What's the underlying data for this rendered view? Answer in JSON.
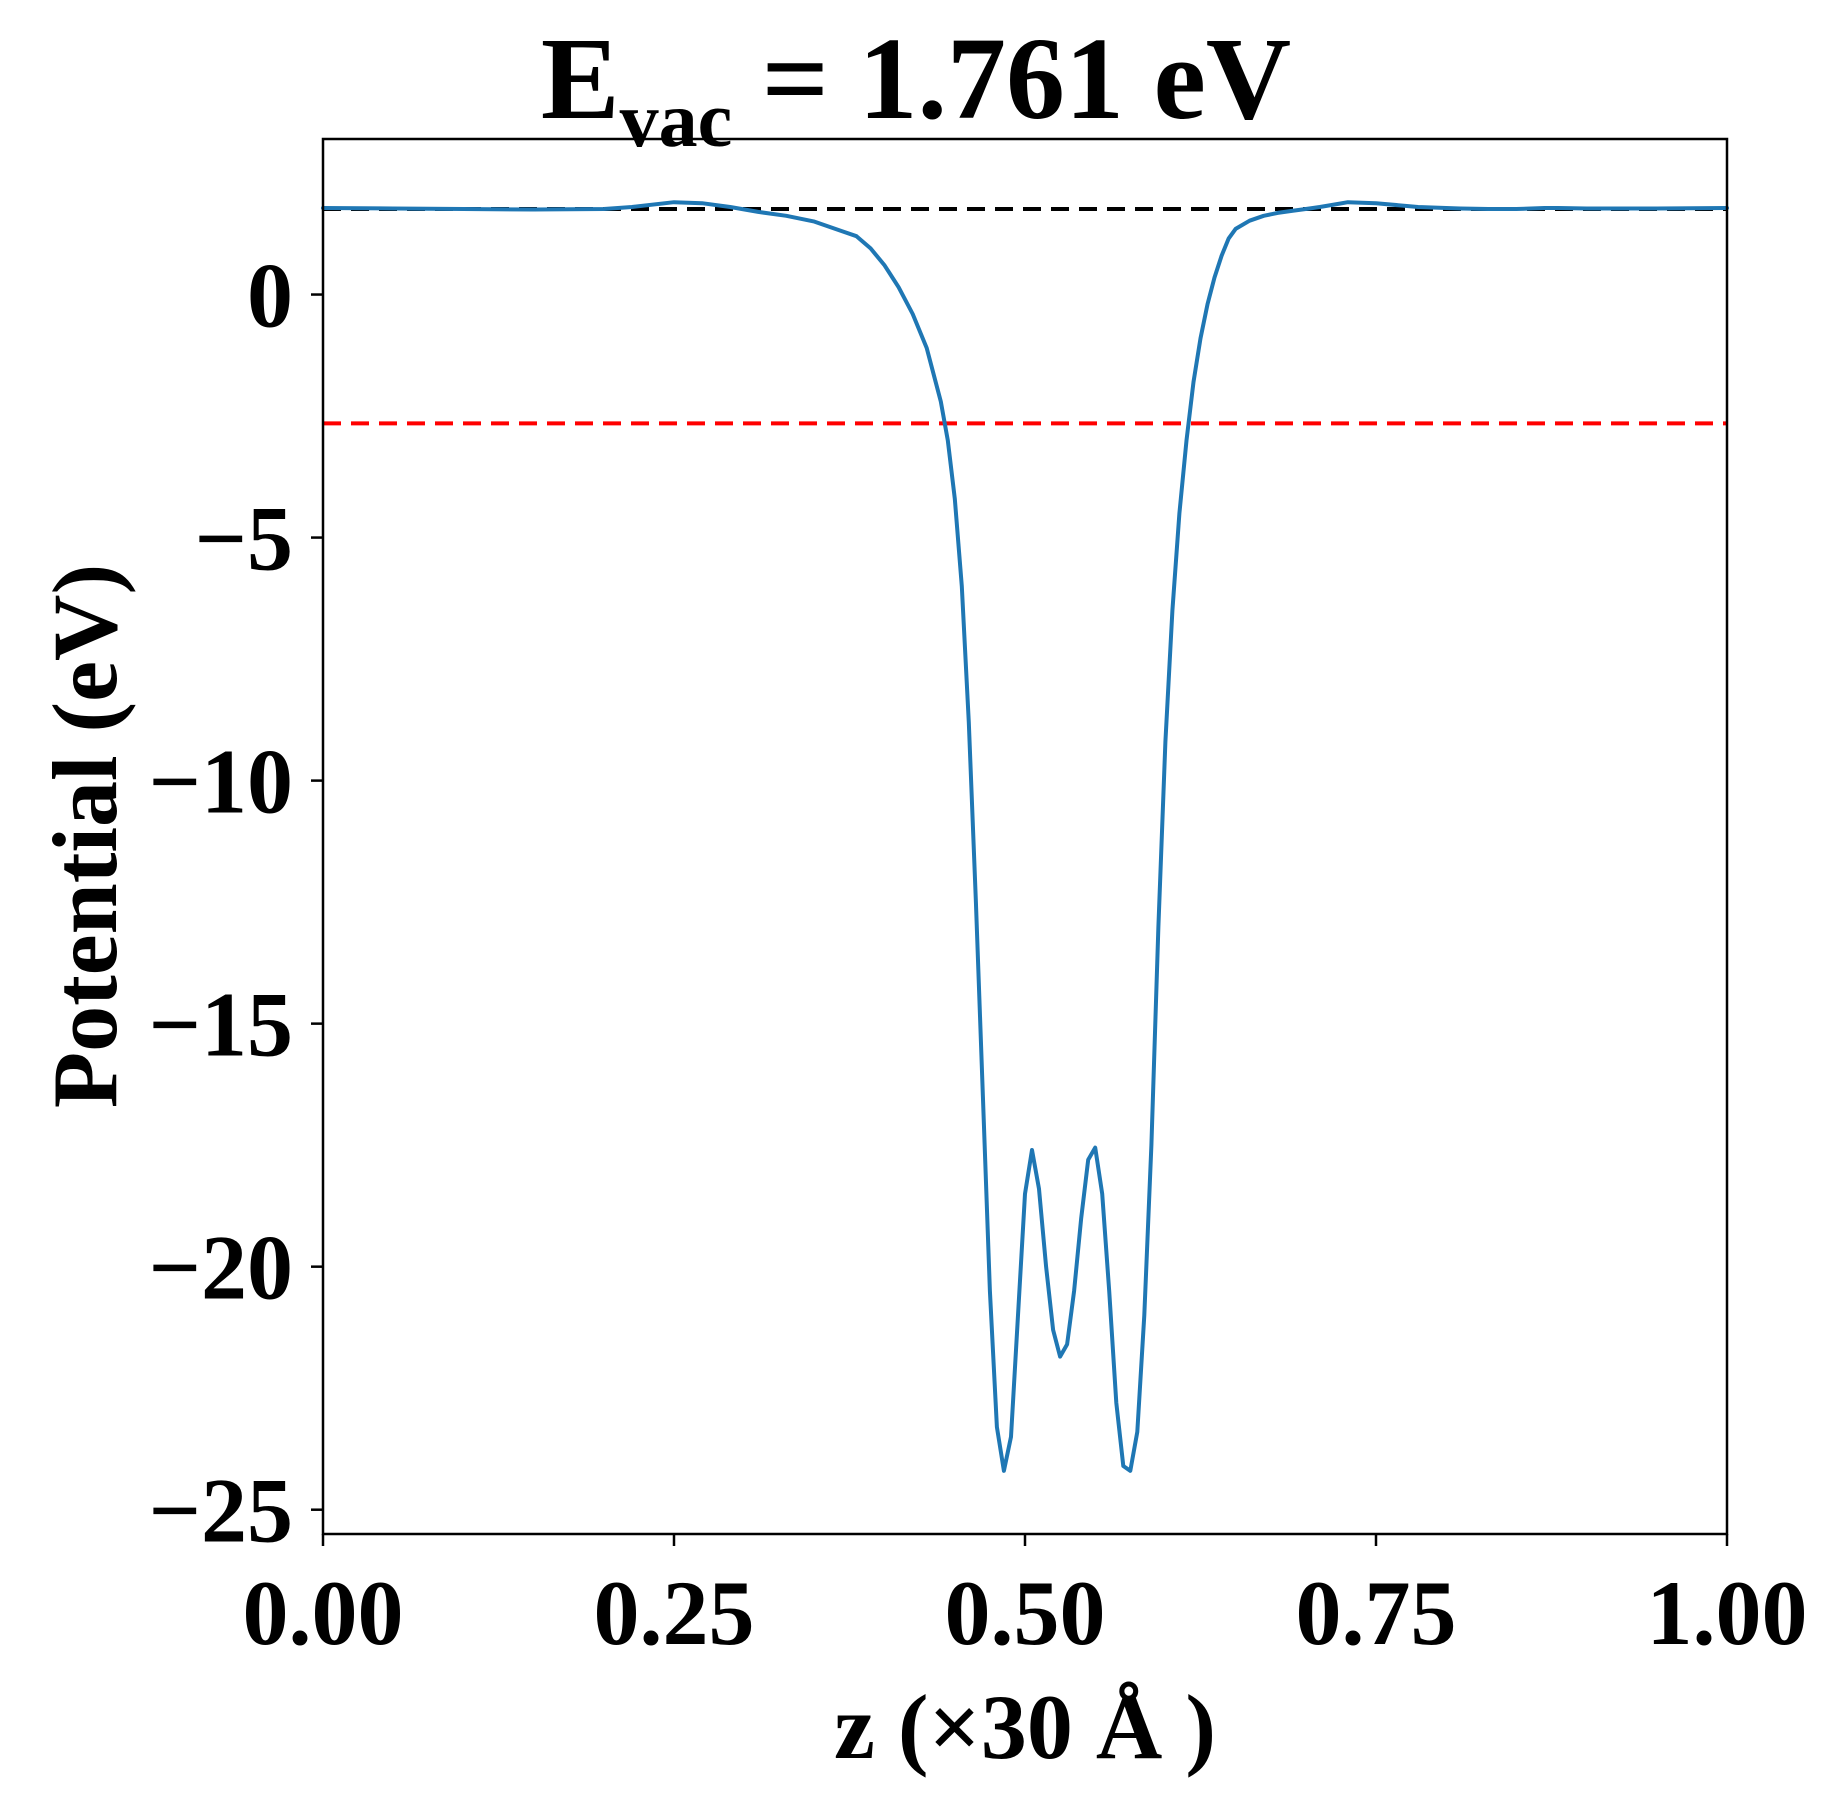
{
  "chart_data": {
    "type": "line",
    "title": {
      "main": "E",
      "subscript": "vac",
      "rest": " = 1.761 eV"
    },
    "xlabel": "z (×30 Å )",
    "ylabel": "Potential (eV)",
    "xlim": [
      0.0,
      1.0
    ],
    "ylim": [
      -25.5,
      3.2
    ],
    "grid": false,
    "x_ticks": [
      0.0,
      0.25,
      0.5,
      0.75,
      1.0
    ],
    "x_tick_labels": [
      "0.00",
      "0.25",
      "0.50",
      "0.75",
      "1.00"
    ],
    "y_ticks": [
      0,
      -5,
      -10,
      -15,
      -20,
      -25
    ],
    "y_tick_labels": [
      "0",
      "−5",
      "−10",
      "−15",
      "−20",
      "−25"
    ],
    "series": [
      {
        "color": "#1f77b4",
        "x": [
          0.0,
          0.05,
          0.1,
          0.15,
          0.2,
          0.22,
          0.25,
          0.27,
          0.29,
          0.31,
          0.33,
          0.35,
          0.37,
          0.38,
          0.39,
          0.4,
          0.41,
          0.42,
          0.43,
          0.44,
          0.445,
          0.45,
          0.455,
          0.46,
          0.465,
          0.47,
          0.475,
          0.48,
          0.485,
          0.49,
          0.495,
          0.5,
          0.505,
          0.51,
          0.515,
          0.52,
          0.525,
          0.53,
          0.535,
          0.54,
          0.545,
          0.55,
          0.555,
          0.56,
          0.565,
          0.57,
          0.575,
          0.58,
          0.585,
          0.59,
          0.595,
          0.6,
          0.605,
          0.61,
          0.615,
          0.62,
          0.625,
          0.63,
          0.635,
          0.64,
          0.645,
          0.65,
          0.66,
          0.67,
          0.68,
          0.69,
          0.7,
          0.71,
          0.72,
          0.73,
          0.75,
          0.78,
          0.81,
          0.83,
          0.85,
          0.87,
          0.88,
          0.9,
          0.95,
          1.0
        ],
        "y": [
          1.78,
          1.77,
          1.76,
          1.75,
          1.76,
          1.8,
          1.9,
          1.88,
          1.8,
          1.7,
          1.62,
          1.5,
          1.3,
          1.2,
          0.95,
          0.6,
          0.15,
          -0.4,
          -1.1,
          -2.2,
          -3.0,
          -4.2,
          -6.0,
          -8.8,
          -12.5,
          -16.5,
          -20.5,
          -23.3,
          -24.2,
          -23.5,
          -21.0,
          -18.5,
          -17.6,
          -18.4,
          -20.0,
          -21.3,
          -21.85,
          -21.6,
          -20.5,
          -19.0,
          -17.8,
          -17.55,
          -18.5,
          -20.5,
          -22.8,
          -24.1,
          -24.2,
          -23.4,
          -21.0,
          -17.5,
          -13.0,
          -9.2,
          -6.5,
          -4.5,
          -3.0,
          -1.8,
          -0.9,
          -0.2,
          0.35,
          0.8,
          1.15,
          1.35,
          1.52,
          1.62,
          1.68,
          1.72,
          1.76,
          1.8,
          1.85,
          1.9,
          1.88,
          1.8,
          1.77,
          1.76,
          1.76,
          1.78,
          1.78,
          1.77,
          1.77,
          1.78
        ]
      }
    ],
    "reference_lines": [
      {
        "y": 1.761,
        "color": "#000000",
        "style": "dashed"
      },
      {
        "y": -2.65,
        "color": "#ff0000",
        "style": "dashed"
      }
    ]
  }
}
